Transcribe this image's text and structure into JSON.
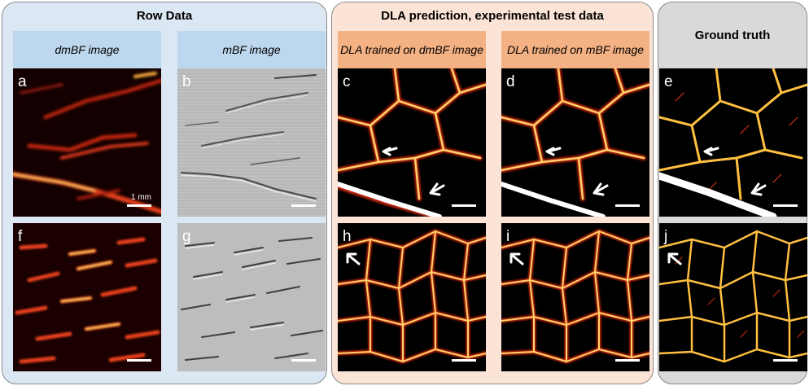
{
  "groups": {
    "raw": {
      "title": "Row Data"
    },
    "dla": {
      "title": "DLA prediction, experimental test data"
    },
    "gt": {
      "title": "Ground truth"
    }
  },
  "columns": {
    "dmbf": "dmBF image",
    "mbf": "mBF image",
    "dla_dmbf": "DLA trained on dmBF image",
    "dla_mbf": "DLA trained on mBF image"
  },
  "panels": {
    "a": "a",
    "b": "b",
    "c": "c",
    "d": "d",
    "e": "e",
    "f": "f",
    "g": "g",
    "h": "h",
    "i": "i",
    "j": "j"
  },
  "scale_label": "1 mm",
  "colors": {
    "raw_bg": "#dbe7f3",
    "raw_header": "#bdd7ee",
    "dla_bg": "#fbe3d5",
    "dla_header": "#f4b183",
    "gt_bg": "#d9d9d9",
    "vessel_hot": "#ffd36a",
    "vessel_core": "#ffffff",
    "vessel_edge": "#c8280a"
  }
}
